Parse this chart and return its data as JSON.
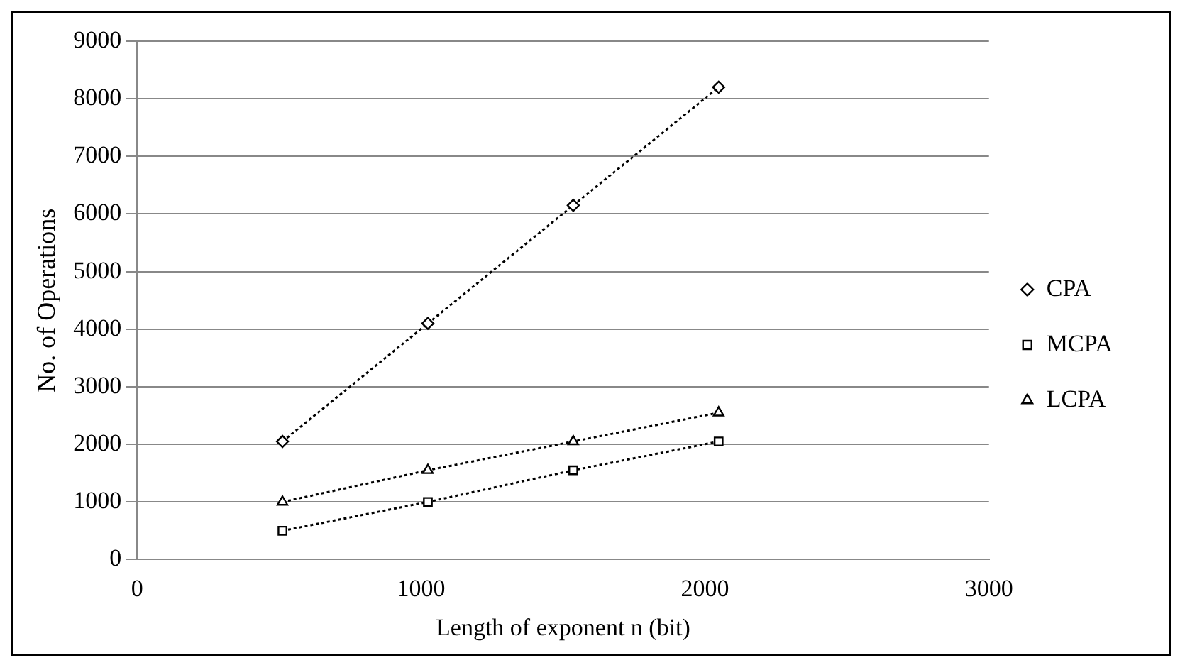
{
  "chart_data": {
    "type": "line",
    "xlabel": "Length of exponent n (bit)",
    "ylabel": "No. of Operations",
    "x": [
      512,
      1024,
      1536,
      2048
    ],
    "series": [
      {
        "name": "CPA",
        "color": "#000000",
        "marker": "diamond",
        "values": [
          2050,
          4100,
          6150,
          8200
        ]
      },
      {
        "name": "MCPA",
        "color": "#000000",
        "marker": "square",
        "values": [
          500,
          1000,
          1550,
          2050
        ]
      },
      {
        "name": "LCPA",
        "color": "#000000",
        "marker": "triangle",
        "values": [
          1000,
          1550,
          2050,
          2550
        ]
      }
    ],
    "xlim": [
      0,
      3000
    ],
    "xticks": [
      0,
      1000,
      2000,
      3000
    ],
    "ylim": [
      0,
      9000
    ],
    "yticks": [
      0,
      1000,
      2000,
      3000,
      4000,
      5000,
      6000,
      7000,
      8000,
      9000
    ],
    "grid": "y",
    "legend": "right",
    "line_style": "dotted"
  }
}
